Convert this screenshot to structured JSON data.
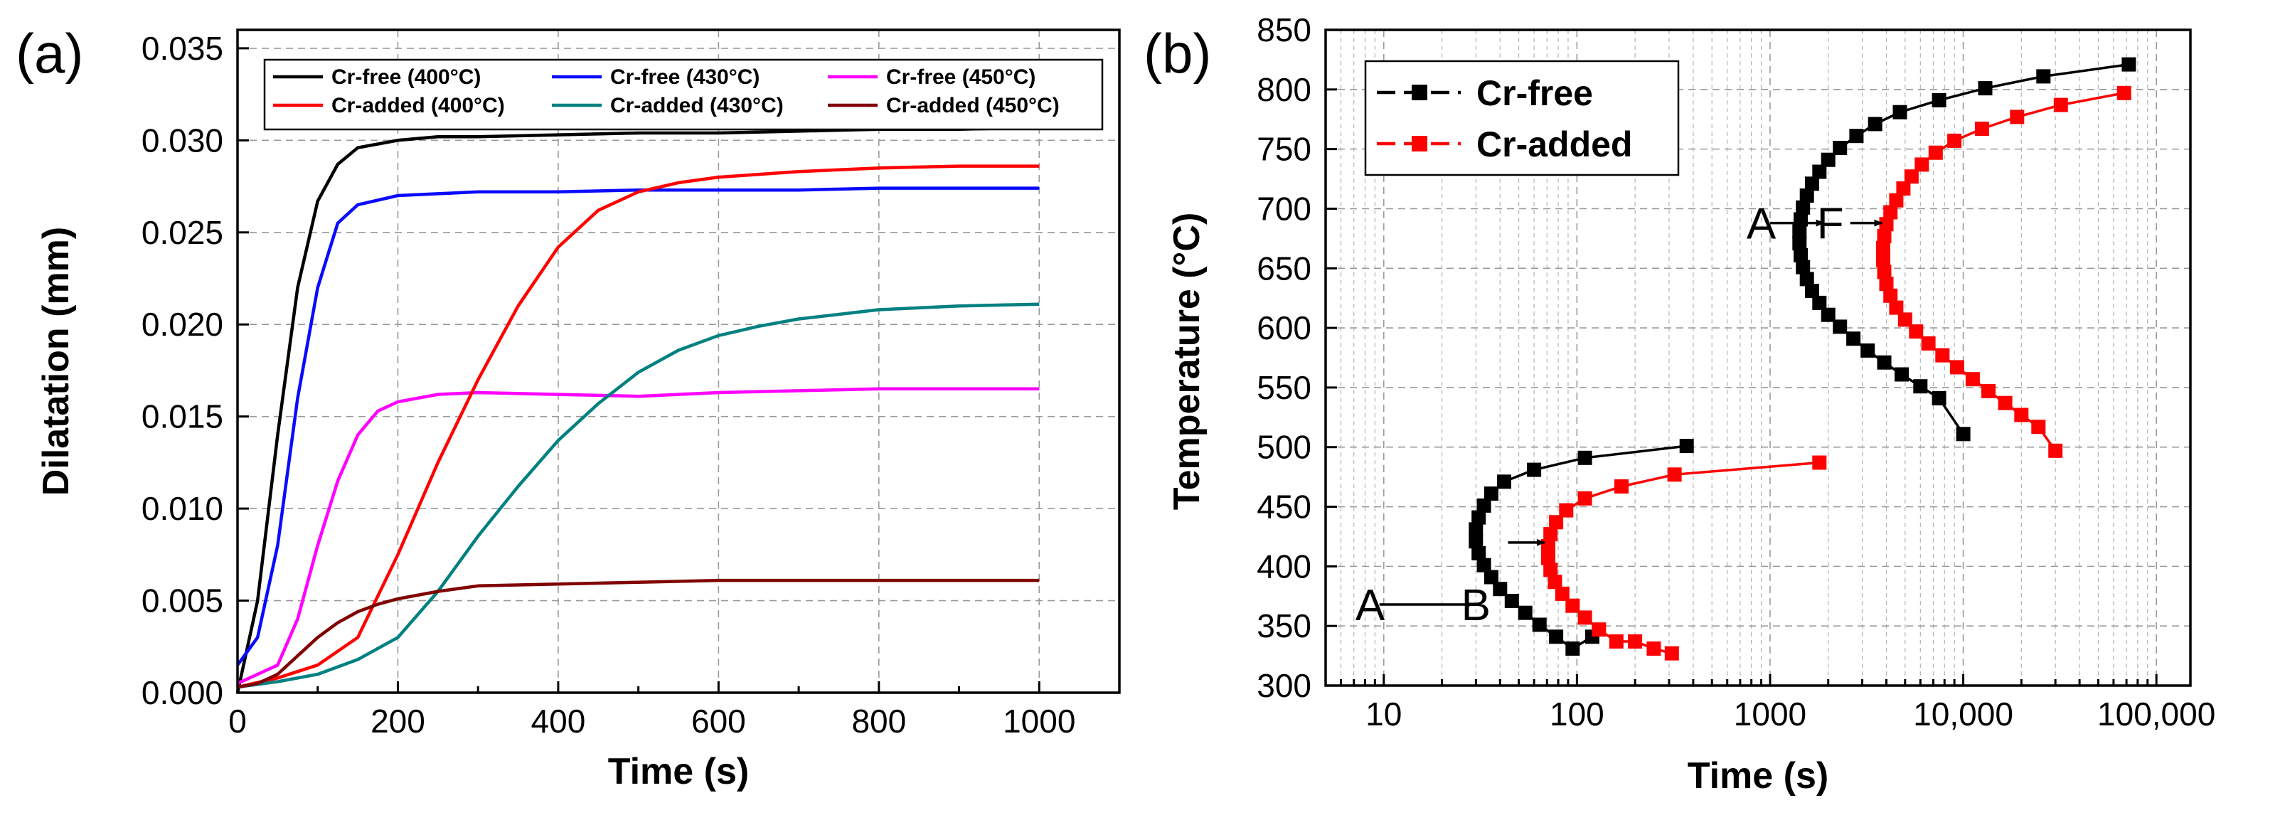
{
  "chart_data": [
    {
      "panel_label": "(a)",
      "type": "line",
      "xlabel": "Time (s)",
      "ylabel": "Dilatation (mm)",
      "xlim": [
        0,
        1100
      ],
      "ylim": [
        0,
        0.036
      ],
      "xticks": [
        0,
        200,
        400,
        600,
        800,
        1000
      ],
      "xtick_labels": [
        "0",
        "200",
        "400",
        "600",
        "800",
        "1000"
      ],
      "yticks": [
        0.0,
        0.005,
        0.01,
        0.015,
        0.02,
        0.025,
        0.03,
        0.035
      ],
      "ytick_labels": [
        "0.000",
        "0.005",
        "0.010",
        "0.015",
        "0.020",
        "0.025",
        "0.030",
        "0.035"
      ],
      "grid": true,
      "legend_position": "top",
      "series": [
        {
          "name": "Cr-free (400°C)",
          "color": "#000000",
          "x": [
            0,
            25,
            50,
            75,
            100,
            125,
            150,
            200,
            250,
            300,
            400,
            500,
            600,
            700,
            800,
            900,
            1000
          ],
          "y": [
            0.0,
            0.005,
            0.014,
            0.022,
            0.0267,
            0.0287,
            0.0296,
            0.03,
            0.0302,
            0.0302,
            0.0303,
            0.0304,
            0.0304,
            0.0305,
            0.0306,
            0.0306,
            0.0307
          ]
        },
        {
          "name": "Cr-free (430°C)",
          "color": "#0a0aff",
          "x": [
            0,
            25,
            50,
            75,
            100,
            125,
            150,
            200,
            250,
            300,
            400,
            500,
            600,
            700,
            800,
            900,
            1000
          ],
          "y": [
            0.0015,
            0.003,
            0.008,
            0.016,
            0.022,
            0.0255,
            0.0265,
            0.027,
            0.0271,
            0.0272,
            0.0272,
            0.0273,
            0.0273,
            0.0273,
            0.0274,
            0.0274,
            0.0274
          ]
        },
        {
          "name": "Cr-free (450°C)",
          "color": "#ff00ff",
          "x": [
            0,
            50,
            75,
            100,
            125,
            150,
            175,
            200,
            250,
            300,
            400,
            500,
            600,
            700,
            800,
            900,
            1000
          ],
          "y": [
            0.0005,
            0.0015,
            0.004,
            0.008,
            0.0115,
            0.014,
            0.0153,
            0.0158,
            0.0162,
            0.0163,
            0.0162,
            0.0161,
            0.0163,
            0.0164,
            0.0165,
            0.0165,
            0.0165
          ]
        },
        {
          "name": "Cr-added (400°C)",
          "color": "#ff0000",
          "x": [
            0,
            50,
            100,
            150,
            200,
            250,
            300,
            350,
            400,
            450,
            500,
            550,
            600,
            700,
            800,
            900,
            1000
          ],
          "y": [
            0.0003,
            0.0008,
            0.0015,
            0.003,
            0.0075,
            0.0125,
            0.017,
            0.021,
            0.0242,
            0.0262,
            0.0272,
            0.0277,
            0.028,
            0.0283,
            0.0285,
            0.0286,
            0.0286
          ]
        },
        {
          "name": "Cr-added (430°C)",
          "color": "#008080",
          "x": [
            0,
            50,
            100,
            150,
            200,
            250,
            300,
            350,
            400,
            450,
            500,
            550,
            600,
            650,
            700,
            800,
            900,
            1000
          ],
          "y": [
            0.0003,
            0.0006,
            0.001,
            0.0018,
            0.003,
            0.0055,
            0.0085,
            0.0112,
            0.0137,
            0.0157,
            0.0174,
            0.0186,
            0.0194,
            0.0199,
            0.0203,
            0.0208,
            0.021,
            0.0211
          ]
        },
        {
          "name": "Cr-added (450°C)",
          "color": "#800000",
          "x": [
            0,
            25,
            50,
            75,
            100,
            125,
            150,
            175,
            200,
            250,
            300,
            400,
            500,
            600,
            700,
            800,
            900,
            1000
          ],
          "y": [
            0.0003,
            0.0005,
            0.001,
            0.002,
            0.003,
            0.0038,
            0.0044,
            0.0048,
            0.0051,
            0.0055,
            0.0058,
            0.0059,
            0.006,
            0.0061,
            0.0061,
            0.0061,
            0.0061,
            0.0061
          ]
        }
      ]
    },
    {
      "panel_label": "(b)",
      "type": "line",
      "xscale": "log",
      "xlabel": "Time (s)",
      "ylabel": "Temperature (°C)",
      "xlim": [
        5,
        150000
      ],
      "ylim": [
        300,
        850
      ],
      "xticks": [
        10,
        100,
        1000,
        10000,
        100000
      ],
      "xtick_labels": [
        "10",
        "100",
        "1000",
        "10,000",
        "100,000"
      ],
      "yticks": [
        300,
        350,
        400,
        450,
        500,
        550,
        600,
        650,
        700,
        750,
        800,
        850
      ],
      "ytick_labels": [
        "300",
        "350",
        "400",
        "450",
        "500",
        "550",
        "600",
        "650",
        "700",
        "750",
        "800",
        "850"
      ],
      "grid": true,
      "legend_position": "top-left",
      "annotations": [
        {
          "text": "A",
          "x": 900,
          "y": 688
        },
        {
          "text": "F",
          "x": 2050,
          "y": 688
        },
        {
          "text": "A",
          "x": 8.5,
          "y": 368
        },
        {
          "text": "B",
          "x": 30,
          "y": 368
        }
      ],
      "arrows": [
        {
          "from": [
            1000,
            688
          ],
          "to": [
            1900,
            688
          ]
        },
        {
          "from": [
            2600,
            688
          ],
          "to": [
            3800,
            688
          ]
        },
        {
          "from": [
            9.5,
            368
          ],
          "to": [
            29,
            368
          ]
        },
        {
          "from": [
            44,
            420
          ],
          "to": [
            68,
            420
          ]
        }
      ],
      "series": [
        {
          "name": "Cr-free",
          "color": "#000000",
          "segments": [
            {
              "x": [
                72000,
                26000,
                13000,
                7500,
                4700,
                3500,
                2800,
                2300,
                2000,
                1800,
                1650,
                1550,
                1480,
                1440,
                1420,
                1420,
                1440,
                1480,
                1550,
                1650,
                1800,
                2000,
                2300,
                2700,
                3200,
                3900,
                4800,
                6000,
                7500,
                10000
              ],
              "y": [
                821,
                811,
                801,
                791,
                781,
                771,
                761,
                751,
                741,
                731,
                721,
                711,
                701,
                691,
                681,
                671,
                661,
                651,
                641,
                631,
                621,
                611,
                601,
                591,
                581,
                571,
                561,
                551,
                541,
                511
              ]
            },
            {
              "x": [
                370,
                110,
                60,
                42,
                36,
                33,
                31,
                30,
                30,
                31,
                33,
                36,
                40,
                46,
                54,
                64,
                78,
                95,
                120
              ],
              "y": [
                501,
                491,
                481,
                471,
                461,
                451,
                441,
                431,
                421,
                411,
                401,
                391,
                381,
                371,
                361,
                351,
                341,
                331,
                341
              ]
            }
          ]
        },
        {
          "name": "Cr-added",
          "color": "#ff0000",
          "segments": [
            {
              "x": [
                68000,
                32000,
                19000,
                12500,
                9000,
                7200,
                6100,
                5400,
                4900,
                4500,
                4200,
                4000,
                3900,
                3850,
                3850,
                3900,
                4000,
                4200,
                4500,
                5000,
                5700,
                6600,
                7800,
                9300,
                11200,
                13500,
                16500,
                20000,
                24500,
                30000
              ],
              "y": [
                797,
                787,
                777,
                767,
                757,
                747,
                737,
                727,
                717,
                707,
                697,
                687,
                677,
                667,
                657,
                647,
                637,
                627,
                617,
                607,
                597,
                587,
                577,
                567,
                557,
                547,
                537,
                527,
                517,
                497
              ]
            },
            {
              "x": [
                1800,
                320,
                170,
                110,
                88,
                78,
                73,
                71,
                71,
                73,
                77,
                84,
                95,
                110,
                130,
                160,
                200,
                250,
                310
              ],
              "y": [
                487,
                477,
                467,
                457,
                447,
                437,
                427,
                417,
                407,
                397,
                387,
                377,
                367,
                357,
                347,
                337,
                337,
                331,
                327
              ]
            }
          ]
        }
      ]
    }
  ]
}
